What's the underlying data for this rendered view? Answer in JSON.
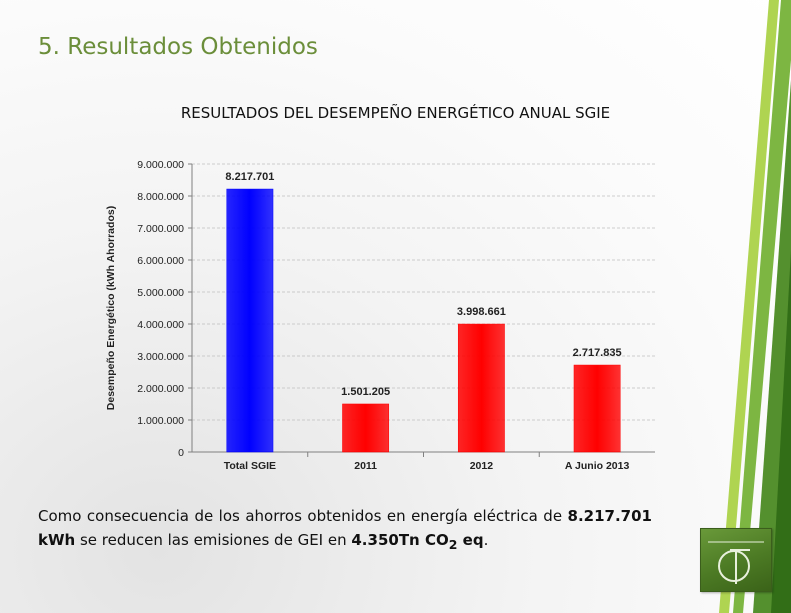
{
  "slide": {
    "title": "5. Resultados Obtenidos"
  },
  "body": {
    "text_before": "Como consecuencia de los ahorros obtenidos en energía eléctrica de ",
    "strong_value": "8.217.701 kWh",
    "text_middle": " se reducen las emisiones de GEI en ",
    "strong_co2": "4.350Tn CO",
    "strong_sub": "2",
    "strong_eq": " eq",
    "text_end": "."
  },
  "colors": {
    "title_green": "#6b8e3a",
    "bar_blue": "#0000ff",
    "bar_red": "#ff0000",
    "stripe_light": "#a6cf3e",
    "stripe_dark": "#4b8a23"
  },
  "chart_data": {
    "type": "bar",
    "title": "RESULTADOS DEL DESEMPEÑO ENERGÉTICO ANUAL SGIE",
    "xlabel": "",
    "ylabel": "Desempeño Energético (kWh Ahorrados)",
    "categories": [
      "Total SGIE",
      "2011",
      "2012",
      "A Junio 2013"
    ],
    "values": [
      8217701,
      1501205,
      3998661,
      2717835
    ],
    "value_labels": [
      "8.217.701",
      "1.501.205",
      "3.998.661",
      "2.717.835"
    ],
    "bar_colors": [
      "#0000ff",
      "#ff0000",
      "#ff0000",
      "#ff0000"
    ],
    "ylim": [
      0,
      9000000
    ],
    "yticks": [
      0,
      1000000,
      2000000,
      3000000,
      4000000,
      5000000,
      6000000,
      7000000,
      8000000,
      9000000
    ],
    "ytick_labels": [
      "0",
      "1.000.000",
      "2.000.000",
      "3.000.000",
      "4.000.000",
      "5.000.000",
      "6.000.000",
      "7.000.000",
      "8.000.000",
      "9.000.000"
    ],
    "grid": true,
    "legend": "none"
  }
}
